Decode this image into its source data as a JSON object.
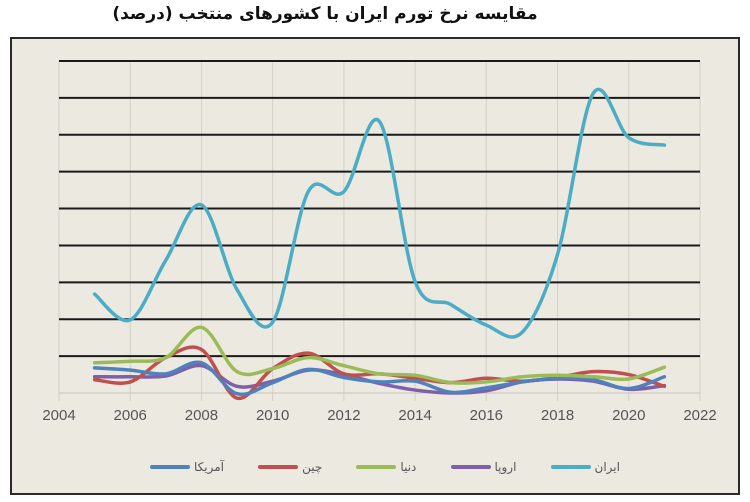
{
  "title": "مقایسه نرخ تورم ایران با کشورهای منتخب (درصد)",
  "chart_data": {
    "type": "line",
    "title": "مقایسه نرخ تورم ایران با کشورهای منتخب (درصد)",
    "xlabel": "",
    "ylabel": "",
    "x_ticks": [
      "2004",
      "2006",
      "2008",
      "2010",
      "2012",
      "2014",
      "2016",
      "2018",
      "2020",
      "2022"
    ],
    "xlim": [
      2004,
      2022
    ],
    "ylim": [
      0,
      45
    ],
    "y_gridlines": [
      0,
      5,
      10,
      15,
      20,
      25,
      30,
      35,
      40,
      45
    ],
    "y_tick_labels_visible": false,
    "grid": true,
    "legend_position": "bottom",
    "x": [
      2005,
      2006,
      2007,
      2008,
      2009,
      2010,
      2011,
      2012,
      2013,
      2014,
      2015,
      2016,
      2017,
      2018,
      2019,
      2020,
      2021
    ],
    "series": [
      {
        "name": "ایران",
        "color": "#4BACC6",
        "values": [
          13.4,
          9.9,
          18.0,
          25.5,
          14.0,
          9.6,
          27.3,
          27.3,
          36.8,
          15.1,
          12.0,
          9.2,
          8.2,
          18.8,
          40.6,
          34.6,
          33.6
        ]
      },
      {
        "name": "اروپا",
        "color": "#7F5FA9",
        "values": [
          2.2,
          2.2,
          2.3,
          3.7,
          0.9,
          1.6,
          3.1,
          2.5,
          1.3,
          0.4,
          0.0,
          0.3,
          1.5,
          1.9,
          1.6,
          0.5,
          1.0
        ]
      },
      {
        "name": "دنیا",
        "color": "#9BBB59",
        "values": [
          4.1,
          4.3,
          4.8,
          8.9,
          2.9,
          3.3,
          4.8,
          3.7,
          2.6,
          2.4,
          1.4,
          1.5,
          2.2,
          2.4,
          2.2,
          1.9,
          3.5
        ]
      },
      {
        "name": "چین",
        "color": "#C0504D",
        "values": [
          1.8,
          1.5,
          4.8,
          5.9,
          -0.7,
          3.3,
          5.4,
          2.6,
          2.6,
          2.0,
          1.4,
          2.0,
          1.6,
          2.1,
          2.9,
          2.5,
          0.9
        ]
      },
      {
        "name": "آمریکا",
        "color": "#4F81BD",
        "values": [
          3.4,
          3.1,
          2.6,
          4.1,
          -0.1,
          1.4,
          3.2,
          2.1,
          1.5,
          1.6,
          0.1,
          0.7,
          1.5,
          2.0,
          1.8,
          0.6,
          2.2
        ]
      }
    ]
  },
  "legend": [
    {
      "label": "ایران",
      "color": "#4BACC6"
    },
    {
      "label": "اروپا",
      "color": "#7F5FA9"
    },
    {
      "label": "دنیا",
      "color": "#9BBB59"
    },
    {
      "label": "چین",
      "color": "#C0504D"
    },
    {
      "label": "آمریکا",
      "color": "#4F81BD"
    }
  ]
}
